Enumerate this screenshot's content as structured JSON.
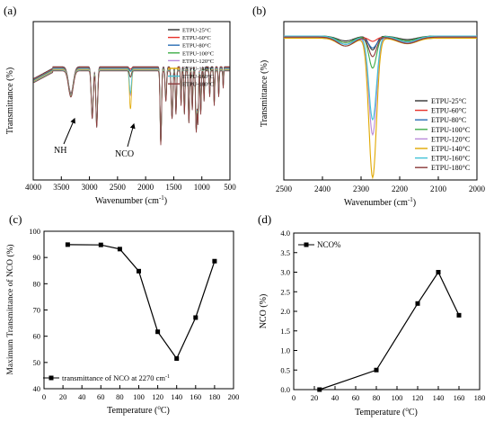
{
  "chart_data": [
    {
      "type": "line",
      "panel_label": "(a)",
      "xlabel": "Wavenumber (cm",
      "xlabel_sup": "-1",
      "xlabel_tail": ")",
      "ylabel": "Transmittance (%)",
      "xlim": [
        4000,
        500
      ],
      "x_ticks": [
        "4000",
        "3500",
        "3000",
        "2500",
        "2000",
        "1500",
        "1000",
        "500"
      ],
      "annotations": [
        {
          "text": "NH",
          "x": 3390
        },
        {
          "text": "NCO",
          "x": 2270
        }
      ],
      "legend": "top-right",
      "series": [
        {
          "name": "ETPU-25°C",
          "color": "#333333"
        },
        {
          "name": "ETPU-60°C",
          "color": "#e8322b"
        },
        {
          "name": "ETPU-80°C",
          "color": "#2a6db5"
        },
        {
          "name": "ETPU-100°C",
          "color": "#3fae49"
        },
        {
          "name": "ETPU-120°C",
          "color": "#b98ad9"
        },
        {
          "name": "ETPU-140°C",
          "color": "#e0a800"
        },
        {
          "name": "ETPU-160°C",
          "color": "#41c2d6"
        },
        {
          "name": "ETPU-180°C",
          "color": "#8b3a3a"
        }
      ]
    },
    {
      "type": "line",
      "panel_label": "(b)",
      "xlabel": "Wavenumber (cm",
      "xlabel_sup": "-1",
      "xlabel_tail": ")",
      "ylabel": "Transmittance (%)",
      "xlim": [
        2500,
        2000
      ],
      "x_ticks": [
        "2500",
        "2400",
        "2300",
        "2200",
        "2100",
        "2000"
      ],
      "legend": "right",
      "peak_x": 2270,
      "series": [
        {
          "name": "ETPU-25°C",
          "color": "#333333",
          "depth": 0.1
        },
        {
          "name": "ETPU-60°C",
          "color": "#e8322b",
          "depth": 0.03
        },
        {
          "name": "ETPU-80°C",
          "color": "#2a6db5",
          "depth": 0.07
        },
        {
          "name": "ETPU-100°C",
          "color": "#3fae49",
          "depth": 0.23
        },
        {
          "name": "ETPU-120°C",
          "color": "#b98ad9",
          "depth": 0.7
        },
        {
          "name": "ETPU-140°C",
          "color": "#e0a800",
          "depth": 1.0
        },
        {
          "name": "ETPU-160°C",
          "color": "#41c2d6",
          "depth": 0.6
        },
        {
          "name": "ETPU-180°C",
          "color": "#8b3a3a",
          "depth": 0.14
        }
      ]
    },
    {
      "type": "line",
      "panel_label": "(c)",
      "xlabel": "Temperature (",
      "xlabel_sup": "o",
      "xlabel_tail": "C)",
      "ylabel": "Maximum Transmittance of NCO (%)",
      "xlim": [
        0,
        200
      ],
      "ylim": [
        40,
        100
      ],
      "x_ticks": [
        "0",
        "20",
        "40",
        "60",
        "80",
        "100",
        "120",
        "140",
        "160",
        "180",
        "200"
      ],
      "y_ticks": [
        "40",
        "50",
        "60",
        "70",
        "80",
        "90",
        "100"
      ],
      "legend": "bottom-left",
      "legend_text": "transmittance of NCO at 2270 cm",
      "legend_sup": "-1",
      "series": [
        {
          "x": [
            25,
            60,
            80,
            100,
            120,
            140,
            160,
            180
          ],
          "y": [
            94.9,
            94.8,
            93.2,
            84.8,
            61.7,
            51.5,
            67.1,
            88.6
          ]
        }
      ]
    },
    {
      "type": "line",
      "panel_label": "(d)",
      "xlabel": "Temperature (",
      "xlabel_sup": "o",
      "xlabel_tail": "C)",
      "ylabel": "NCO (%)",
      "xlim": [
        0,
        180
      ],
      "ylim": [
        0,
        4.0
      ],
      "x_ticks": [
        "0",
        "20",
        "40",
        "60",
        "80",
        "100",
        "120",
        "140",
        "160",
        "180"
      ],
      "y_ticks": [
        "0.0",
        "0.5",
        "1.0",
        "1.5",
        "2.0",
        "2.5",
        "3.0",
        "3.5",
        "4.0"
      ],
      "legend": "top-left",
      "series": [
        {
          "name": "NCO%",
          "x": [
            25,
            80,
            120,
            140,
            160
          ],
          "y": [
            0,
            0.5,
            2.2,
            3.0,
            1.9
          ]
        }
      ]
    }
  ]
}
